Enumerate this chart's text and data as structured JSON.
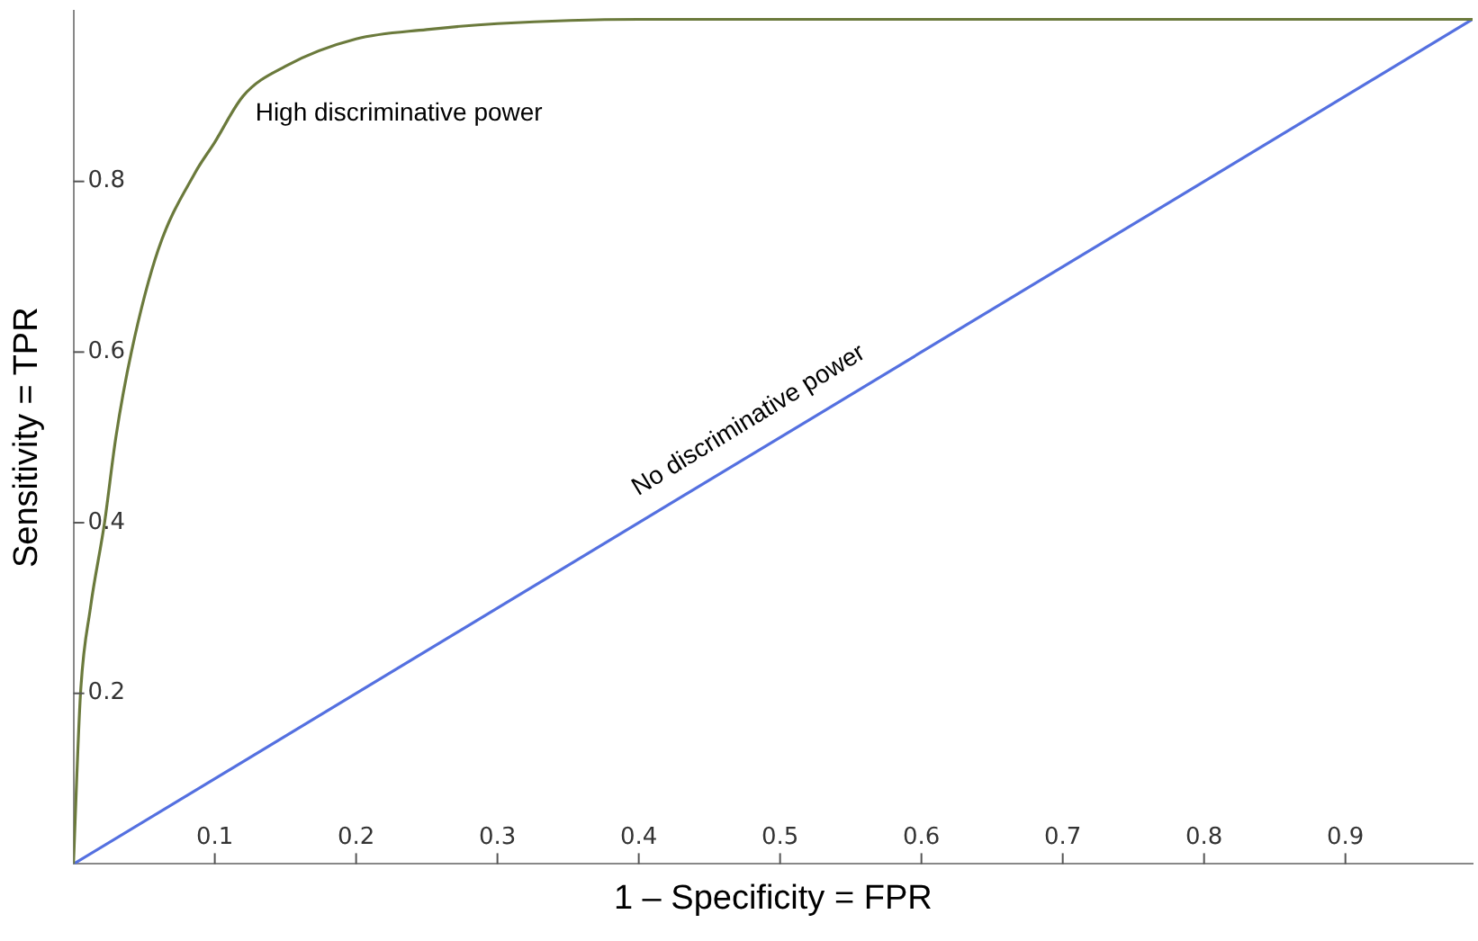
{
  "chart_data": {
    "type": "line",
    "xlabel": "1 – Specificity = FPR",
    "ylabel": "Sensitivity = TPR",
    "xlim": [
      0,
      0.99
    ],
    "ylim": [
      0,
      1.0
    ],
    "xticks": [
      0.1,
      0.2,
      0.3,
      0.4,
      0.5,
      0.6,
      0.7,
      0.8,
      0.9
    ],
    "yticks": [
      0.2,
      0.4,
      0.6,
      0.8
    ],
    "grid": false,
    "marker": "none",
    "line_style": "solid",
    "series": [
      {
        "color": "#6b7a3c",
        "x": [
          0,
          0.005,
          0.012,
          0.022,
          0.03,
          0.041,
          0.06,
          0.086,
          0.1,
          0.12,
          0.15,
          0.2,
          0.25,
          0.3,
          0.4,
          0.5,
          0.7,
          0.99
        ],
        "values": [
          0,
          0.2,
          0.3,
          0.4,
          0.5,
          0.6,
          0.72,
          0.81,
          0.846,
          0.9,
          0.935,
          0.967,
          0.978,
          0.985,
          0.99,
          0.99,
          0.99,
          0.99
        ]
      },
      {
        "color": "#5470e0",
        "x": [
          0,
          0.99
        ],
        "values": [
          0,
          0.99
        ]
      }
    ],
    "annotations": [
      "High discriminative power",
      "No discriminative power"
    ]
  }
}
